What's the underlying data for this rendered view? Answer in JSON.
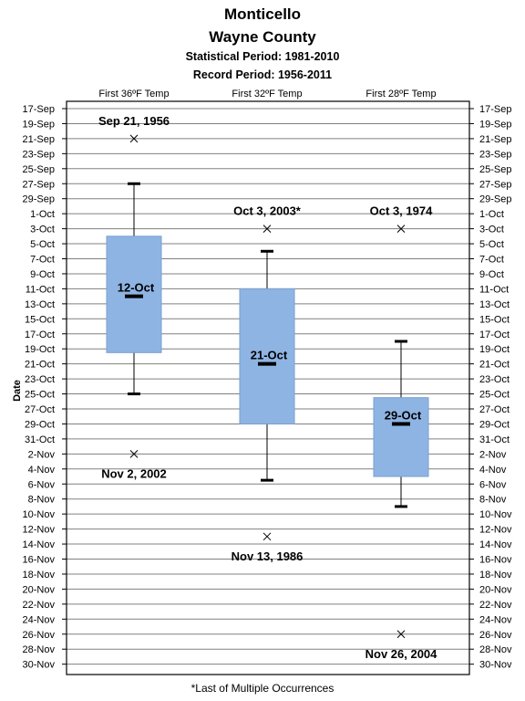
{
  "titles": {
    "line1": "Monticello",
    "line2": "Wayne County",
    "line3": "Statistical Period: 1981-2010",
    "line4": "Record Period: 1956-2011"
  },
  "footnote": "*Last of Multiple Occurrences",
  "chart_data": {
    "type": "box",
    "ylabel": "Date",
    "y_axis_reversed": true,
    "y_unit": "day offset from Sep 17 (0 = 17-Sep)",
    "y_range": [
      0,
      44
    ],
    "y_tick_labels": [
      "17-Sep",
      "19-Sep",
      "21-Sep",
      "23-Sep",
      "25-Sep",
      "27-Sep",
      "29-Sep",
      "1-Oct",
      "3-Oct",
      "5-Oct",
      "7-Oct",
      "9-Oct",
      "11-Oct",
      "13-Oct",
      "15-Oct",
      "17-Oct",
      "19-Oct",
      "21-Oct",
      "23-Oct",
      "25-Oct",
      "27-Oct",
      "29-Oct",
      "31-Oct",
      "2-Nov",
      "4-Nov",
      "6-Nov",
      "8-Nov",
      "10-Nov",
      "12-Nov",
      "14-Nov",
      "16-Nov",
      "18-Nov",
      "20-Nov",
      "22-Nov",
      "24-Nov",
      "26-Nov",
      "28-Nov",
      "30-Nov"
    ],
    "grid": true,
    "categories": [
      "First 36ºF Temp",
      "First 32ºF Temp",
      "First 28ºF Temp"
    ],
    "series": [
      {
        "earliest_record": 4,
        "earliest_record_label": "Sep 21, 1956",
        "whisker_low": 10,
        "q1": 17,
        "median": 25,
        "median_label": "12-Oct",
        "q3": 32.5,
        "whisker_high": 38,
        "latest_record": 46,
        "latest_record_label": "Nov 2, 2002"
      },
      {
        "earliest_record": 16,
        "earliest_record_label": "Oct 3, 2003*",
        "whisker_low": 19,
        "q1": 24,
        "median": 34,
        "median_label": "21-Oct",
        "q3": 42,
        "whisker_high": 49.5,
        "latest_record": 57,
        "latest_record_label": "Nov 13, 1986"
      },
      {
        "earliest_record": 16,
        "earliest_record_label": "Oct 3, 1974",
        "whisker_low": 31,
        "q1": 38.5,
        "median": 42,
        "median_label": "29-Oct",
        "q3": 49,
        "whisker_high": 53,
        "latest_record": 70,
        "latest_record_label": "Nov 26, 2004"
      }
    ],
    "colors": {
      "box_fill": "#8EB4E3",
      "grid": "#808080",
      "marks": "#000000"
    }
  }
}
